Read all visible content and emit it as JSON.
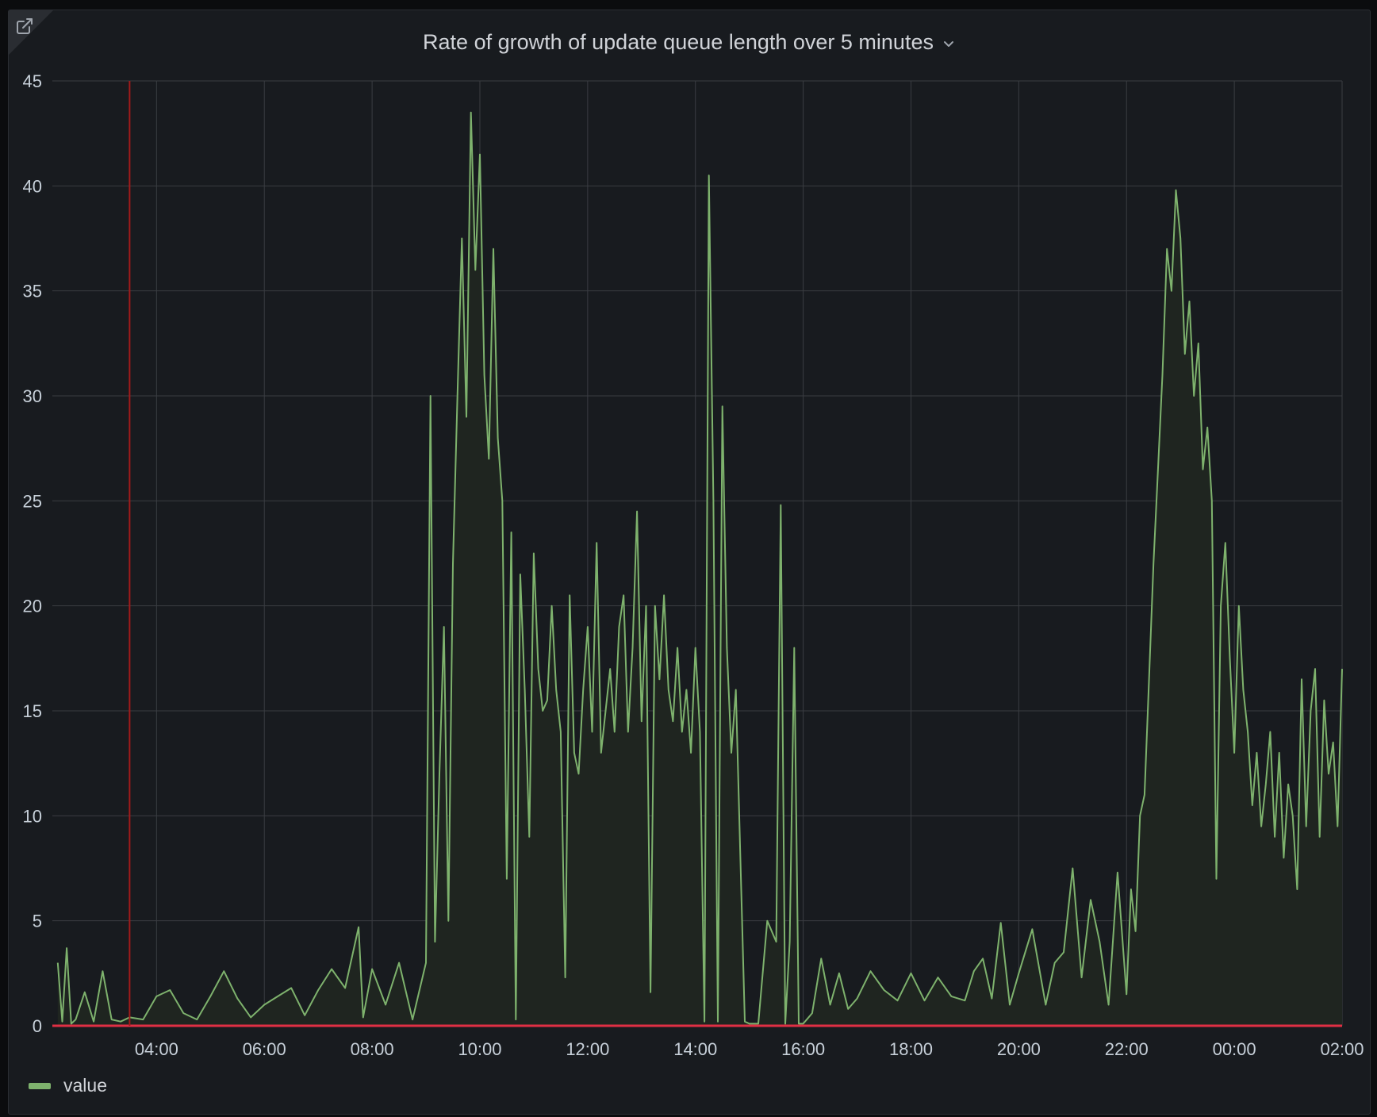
{
  "panel": {
    "title": "Rate of growth of update queue length over 5 minutes",
    "link_icon": "external-link-icon",
    "menu_icon": "chevron-down-icon"
  },
  "colors": {
    "background": "#181b1f",
    "series": "#7eb26d",
    "series_fill": "#1f2520",
    "grid": "#3a3d42",
    "threshold": "#e02f44",
    "marker": "#a11b1b"
  },
  "chart_data": {
    "type": "area",
    "title": "Rate of growth of update queue length over 5 minutes",
    "xlabel": "",
    "ylabel": "",
    "xlim": [
      "02:04",
      "02:00"
    ],
    "ylim": [
      0,
      45
    ],
    "yticks": [
      "0",
      "5",
      "10",
      "15",
      "20",
      "25",
      "30",
      "35",
      "40",
      "45"
    ],
    "xticks": [
      "04:00",
      "06:00",
      "08:00",
      "10:00",
      "12:00",
      "14:00",
      "16:00",
      "18:00",
      "20:00",
      "22:00",
      "00:00",
      "02:00"
    ],
    "grid": true,
    "legend_position": "bottom-left",
    "annotation_time": "03:30",
    "threshold_value": 0,
    "series": [
      {
        "name": "value",
        "x": [
          "02:10",
          "02:15",
          "02:20",
          "02:25",
          "02:30",
          "02:40",
          "02:50",
          "03:00",
          "03:10",
          "03:20",
          "03:30",
          "03:45",
          "04:00",
          "04:15",
          "04:30",
          "04:45",
          "05:00",
          "05:15",
          "05:30",
          "05:45",
          "06:00",
          "06:15",
          "06:30",
          "06:45",
          "07:00",
          "07:15",
          "07:30",
          "07:45",
          "07:50",
          "08:00",
          "08:15",
          "08:30",
          "08:45",
          "09:00",
          "09:05",
          "09:10",
          "09:15",
          "09:20",
          "09:25",
          "09:30",
          "09:35",
          "09:40",
          "09:45",
          "09:50",
          "09:55",
          "10:00",
          "10:05",
          "10:10",
          "10:15",
          "10:20",
          "10:25",
          "10:30",
          "10:35",
          "10:40",
          "10:45",
          "10:50",
          "10:55",
          "11:00",
          "11:05",
          "11:10",
          "11:15",
          "11:20",
          "11:25",
          "11:30",
          "11:35",
          "11:40",
          "11:45",
          "11:50",
          "11:55",
          "12:00",
          "12:05",
          "12:10",
          "12:15",
          "12:20",
          "12:25",
          "12:30",
          "12:35",
          "12:40",
          "12:45",
          "12:50",
          "12:55",
          "13:00",
          "13:05",
          "13:10",
          "13:15",
          "13:20",
          "13:25",
          "13:30",
          "13:35",
          "13:40",
          "13:45",
          "13:50",
          "13:55",
          "14:00",
          "14:05",
          "14:10",
          "14:15",
          "14:20",
          "14:25",
          "14:30",
          "14:35",
          "14:40",
          "14:45",
          "14:50",
          "14:55",
          "15:00",
          "15:10",
          "15:20",
          "15:30",
          "15:35",
          "15:40",
          "15:45",
          "15:50",
          "15:55",
          "16:00",
          "16:10",
          "16:20",
          "16:30",
          "16:40",
          "16:50",
          "17:00",
          "17:15",
          "17:30",
          "17:45",
          "18:00",
          "18:15",
          "18:30",
          "18:45",
          "19:00",
          "19:10",
          "19:20",
          "19:30",
          "19:40",
          "19:50",
          "20:00",
          "20:15",
          "20:30",
          "20:40",
          "20:50",
          "21:00",
          "21:10",
          "21:20",
          "21:30",
          "21:40",
          "21:50",
          "22:00",
          "22:05",
          "22:10",
          "22:15",
          "22:20",
          "22:25",
          "22:30",
          "22:35",
          "22:40",
          "22:45",
          "22:50",
          "22:55",
          "23:00",
          "23:05",
          "23:10",
          "23:15",
          "23:20",
          "23:25",
          "23:30",
          "23:35",
          "23:40",
          "23:45",
          "23:50",
          "23:55",
          "00:00",
          "00:05",
          "00:10",
          "00:15",
          "00:20",
          "00:25",
          "00:30",
          "00:35",
          "00:40",
          "00:45",
          "00:50",
          "00:55",
          "01:00",
          "01:05",
          "01:10",
          "01:15",
          "01:20",
          "01:25",
          "01:30",
          "01:35",
          "01:40",
          "01:45",
          "01:50",
          "01:55",
          "02:00"
        ],
        "values": [
          3.0,
          0.2,
          3.7,
          0.1,
          0.3,
          1.6,
          0.2,
          2.6,
          0.3,
          0.2,
          0.4,
          0.3,
          1.4,
          1.7,
          0.6,
          0.3,
          1.4,
          2.6,
          1.3,
          0.4,
          1.0,
          1.4,
          1.8,
          0.5,
          1.7,
          2.7,
          1.8,
          4.7,
          0.4,
          2.7,
          1.0,
          3.0,
          0.3,
          3.0,
          30.0,
          4.0,
          12.0,
          19.0,
          5.0,
          22.0,
          30.0,
          37.5,
          29.0,
          43.5,
          36.0,
          41.5,
          31.0,
          27.0,
          37.0,
          28.0,
          25.0,
          7.0,
          23.5,
          0.3,
          21.5,
          16.0,
          9.0,
          22.5,
          17.0,
          15.0,
          15.5,
          20.0,
          16.0,
          14.0,
          2.3,
          20.5,
          13.0,
          12.0,
          16.0,
          19.0,
          14.0,
          23.0,
          13.0,
          15.0,
          17.0,
          14.0,
          19.0,
          20.5,
          14.0,
          18.0,
          24.5,
          14.5,
          20.0,
          1.6,
          20.0,
          16.5,
          20.5,
          16.0,
          14.5,
          18.0,
          14.0,
          16.0,
          13.0,
          18.0,
          14.0,
          0.2,
          40.5,
          25.0,
          0.2,
          29.5,
          18.0,
          13.0,
          16.0,
          8.0,
          0.2,
          0.1,
          0.1,
          5.0,
          4.0,
          24.8,
          0.1,
          4.0,
          18.0,
          0.1,
          0.1,
          0.6,
          3.2,
          1.0,
          2.5,
          0.8,
          1.3,
          2.6,
          1.7,
          1.2,
          2.5,
          1.2,
          2.3,
          1.4,
          1.2,
          2.6,
          3.2,
          1.3,
          4.9,
          1.0,
          2.5,
          4.6,
          1.0,
          3.0,
          3.5,
          7.5,
          2.3,
          6.0,
          4.0,
          1.0,
          7.3,
          1.5,
          6.5,
          4.5,
          10.0,
          11.0,
          16.5,
          22.0,
          26.5,
          31.0,
          37.0,
          35.0,
          39.8,
          37.5,
          32.0,
          34.5,
          30.0,
          32.5,
          26.5,
          28.5,
          25.0,
          7.0,
          20.0,
          23.0,
          17.5,
          13.0,
          20.0,
          16.0,
          14.0,
          10.5,
          13.0,
          9.5,
          11.5,
          14.0,
          9.0,
          13.0,
          8.0,
          11.5,
          10.0,
          6.5,
          16.5,
          9.5,
          15.0,
          17.0,
          9.0,
          15.5,
          12.0,
          13.5,
          9.5,
          17.0
        ]
      }
    ]
  },
  "legend": {
    "items": [
      {
        "label": "value",
        "color": "#7eb26d"
      }
    ]
  }
}
